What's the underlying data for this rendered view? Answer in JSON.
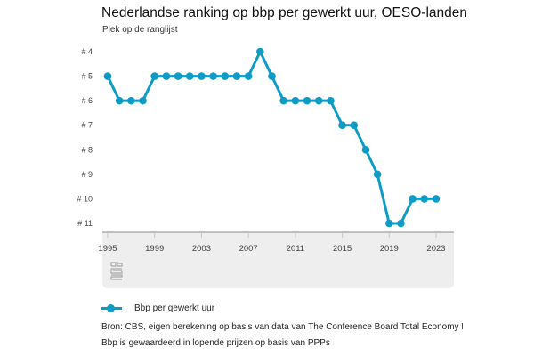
{
  "title": "Nederlandse ranking op bbp per gewerkt uur, OESO-landen",
  "subtitle": "Plek op de ranglijst",
  "colors": {
    "series": "#0f9bc5",
    "panel": "#eeeeee",
    "axis": "#888888"
  },
  "legend": {
    "label": "Bbp per gewerkt uur"
  },
  "notes": {
    "source": "Bron: CBS, eigen berekening op basis van data van The Conference Board Total Economy Database (Ap",
    "remark": "Bbp is gewaardeerd in lopende prijzen op basis van PPPs"
  },
  "logo": {
    "icon": "cbs-logo-icon"
  },
  "chart_data": {
    "type": "line",
    "title": "Nederlandse ranking op bbp per gewerkt uur, OESO-landen",
    "ylabel": "Plek op de ranglijst",
    "xlabel": "",
    "ylim": [
      4,
      11
    ],
    "y_inverted": true,
    "xlim": [
      1995,
      2023
    ],
    "grid": false,
    "legend_position": "bottom-left",
    "y_ticks": [
      {
        "value": 4,
        "label": "# 4"
      },
      {
        "value": 5,
        "label": "# 5"
      },
      {
        "value": 6,
        "label": "# 6"
      },
      {
        "value": 7,
        "label": "# 7"
      },
      {
        "value": 8,
        "label": "# 8"
      },
      {
        "value": 9,
        "label": "# 9"
      },
      {
        "value": 10,
        "label": "# 10"
      },
      {
        "value": 11,
        "label": "# 11"
      }
    ],
    "x_ticks": [
      1995,
      1999,
      2003,
      2007,
      2011,
      2015,
      2019,
      2023
    ],
    "x_minor_ticks": [
      1995,
      1999,
      2003,
      2007,
      2011,
      2015,
      2019,
      2023
    ],
    "x": [
      1995,
      1996,
      1997,
      1998,
      1999,
      2000,
      2001,
      2002,
      2003,
      2004,
      2005,
      2006,
      2007,
      2008,
      2009,
      2010,
      2011,
      2012,
      2013,
      2014,
      2015,
      2016,
      2017,
      2018,
      2019,
      2020,
      2021,
      2022,
      2023
    ],
    "series": [
      {
        "name": "Bbp per gewerkt uur",
        "values": [
          5,
          6,
          6,
          6,
          5,
          5,
          5,
          5,
          5,
          5,
          5,
          5,
          5,
          4,
          5,
          6,
          6,
          6,
          6,
          6,
          7,
          7,
          8,
          9,
          11,
          11,
          10,
          10,
          10
        ]
      }
    ]
  }
}
